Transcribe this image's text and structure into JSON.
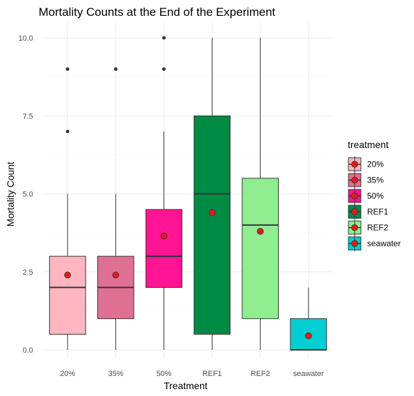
{
  "chart_data": {
    "type": "boxplot",
    "title": "Mortality Counts at the End of the Experiment",
    "xlabel": "Treatment",
    "ylabel": "Mortality Count",
    "ylim": [
      -0.3,
      10.4
    ],
    "yticks": [
      0.0,
      2.5,
      5.0,
      7.5,
      10.0
    ],
    "ytick_labels": [
      "0.0",
      "2.5",
      "5.0",
      "7.5",
      "10.0"
    ],
    "grid": true,
    "legend": {
      "title": "treatment",
      "position": "right",
      "entries": [
        "20%",
        "35%",
        "50%",
        "REF1",
        "REF2",
        "seawater"
      ]
    },
    "mean_marker_color": "#e31a1c",
    "categories": [
      "20%",
      "35%",
      "50%",
      "REF1",
      "REF2",
      "seawater"
    ],
    "boxes": [
      {
        "category": "20%",
        "color": "#ffb6c1",
        "whisker_low": 0,
        "q1": 0.5,
        "median": 2,
        "q3": 3,
        "whisker_high": 5,
        "mean": 2.4,
        "outliers": [
          7,
          9
        ]
      },
      {
        "category": "35%",
        "color": "#e07093",
        "whisker_low": 0,
        "q1": 1,
        "median": 2,
        "q3": 3,
        "whisker_high": 5,
        "mean": 2.4,
        "outliers": [
          9
        ]
      },
      {
        "category": "50%",
        "color": "#ff1493",
        "whisker_low": 0,
        "q1": 2,
        "median": 3,
        "q3": 4.5,
        "whisker_high": 7,
        "mean": 3.65,
        "outliers": [
          9,
          10
        ]
      },
      {
        "category": "REF1",
        "color": "#008b45",
        "whisker_low": 0,
        "q1": 0.5,
        "median": 5,
        "q3": 7.5,
        "whisker_high": 10,
        "mean": 4.4,
        "outliers": []
      },
      {
        "category": "REF2",
        "color": "#90ee90",
        "whisker_low": 0,
        "q1": 1,
        "median": 4,
        "q3": 5.5,
        "whisker_high": 10,
        "mean": 3.8,
        "outliers": []
      },
      {
        "category": "seawater",
        "color": "#00ced1",
        "whisker_low": 0,
        "q1": 0,
        "median": 0,
        "q3": 1,
        "whisker_high": 2,
        "mean": 0.45,
        "outliers": []
      }
    ]
  }
}
